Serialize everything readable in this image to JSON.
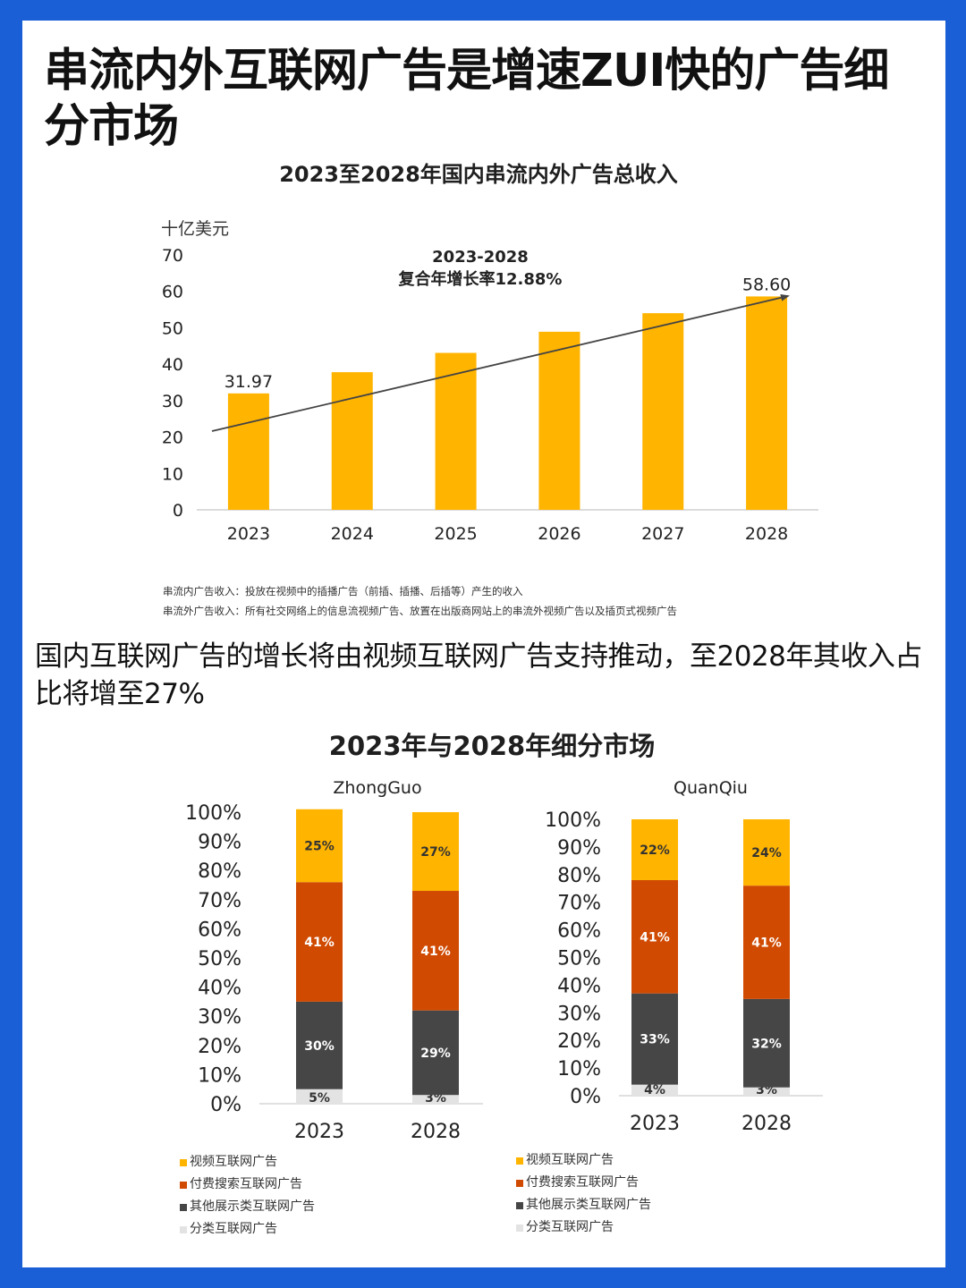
{
  "heading": "串流内外互联网广告是增速ZUI快的广告细分市场",
  "subheading": "国内互联网广告的增长将由视频互联网广告支持推动，至2028年其收入占比将增至27%",
  "notes": [
    "串流内广告收入：投放在视频中的插播广告（前插、插播、后插等）产生的收入",
    "串流外广告收入：所有社交网络上的信息流视频广告、放置在出版商网站上的串流外视频广告以及插页式视频广告"
  ],
  "colors": {
    "border": "#1a5fd6",
    "bar": "#FFB400",
    "video": "#FFB400",
    "search": "#D04A02",
    "display": "#464646",
    "classified": "#E3E3E3"
  },
  "chart_data": [
    {
      "type": "bar",
      "title": "2023至2028年国内串流内外广告总收入",
      "ylabel": "十亿美元",
      "categories": [
        "2023",
        "2024",
        "2025",
        "2026",
        "2027",
        "2028"
      ],
      "values": [
        31.97,
        37.8,
        43.1,
        48.9,
        54.0,
        58.6
      ],
      "data_labels": {
        "2023": "31.97",
        "2028": "58.60"
      },
      "ylim": [
        0,
        70
      ],
      "yticks": [
        "0",
        "10",
        "20",
        "30",
        "40",
        "50",
        "60",
        "70"
      ],
      "annotation": {
        "line1": "2023-2028",
        "line2": "复合年增长率12.88%"
      },
      "trend_arrow": true,
      "grid": false
    },
    {
      "type": "bar",
      "stacked": true,
      "title": "2023年与2028年细分市场",
      "ylim": [
        0,
        100
      ],
      "yticks": [
        "0%",
        "10%",
        "20%",
        "30%",
        "40%",
        "50%",
        "60%",
        "70%",
        "80%",
        "90%",
        "100%"
      ],
      "segments": [
        "分类互联网广告",
        "其他展示类互联网广告",
        "付费搜索互联网广告",
        "视频互联网广告"
      ],
      "legend": [
        "视频互联网广告",
        "付费搜索互联网广告",
        "其他展示类互联网广告",
        "分类互联网广告"
      ],
      "panels": [
        {
          "name": "ZhongGuo",
          "categories": [
            "2023",
            "2028"
          ],
          "series": [
            {
              "name": "分类互联网广告",
              "values": [
                5,
                3
              ],
              "labels": [
                "5%",
                "3%"
              ]
            },
            {
              "name": "其他展示类互联网广告",
              "values": [
                30,
                29
              ],
              "labels": [
                "30%",
                "29%"
              ]
            },
            {
              "name": "付费搜索互联网广告",
              "values": [
                41,
                41
              ],
              "labels": [
                "41%",
                "41%"
              ]
            },
            {
              "name": "视频互联网广告",
              "values": [
                25,
                27
              ],
              "labels": [
                "25%",
                "27%"
              ]
            }
          ]
        },
        {
          "name": "QuanQiu",
          "categories": [
            "2023",
            "2028"
          ],
          "series": [
            {
              "name": "分类互联网广告",
              "values": [
                4,
                3
              ],
              "labels": [
                "4%",
                "3%"
              ]
            },
            {
              "name": "其他展示类互联网广告",
              "values": [
                33,
                32
              ],
              "labels": [
                "33%",
                "32%"
              ]
            },
            {
              "name": "付费搜索互联网广告",
              "values": [
                41,
                41
              ],
              "labels": [
                "41%",
                "41%"
              ]
            },
            {
              "name": "视频互联网广告",
              "values": [
                22,
                24
              ],
              "labels": [
                "22%",
                "24%"
              ]
            }
          ]
        }
      ]
    }
  ]
}
